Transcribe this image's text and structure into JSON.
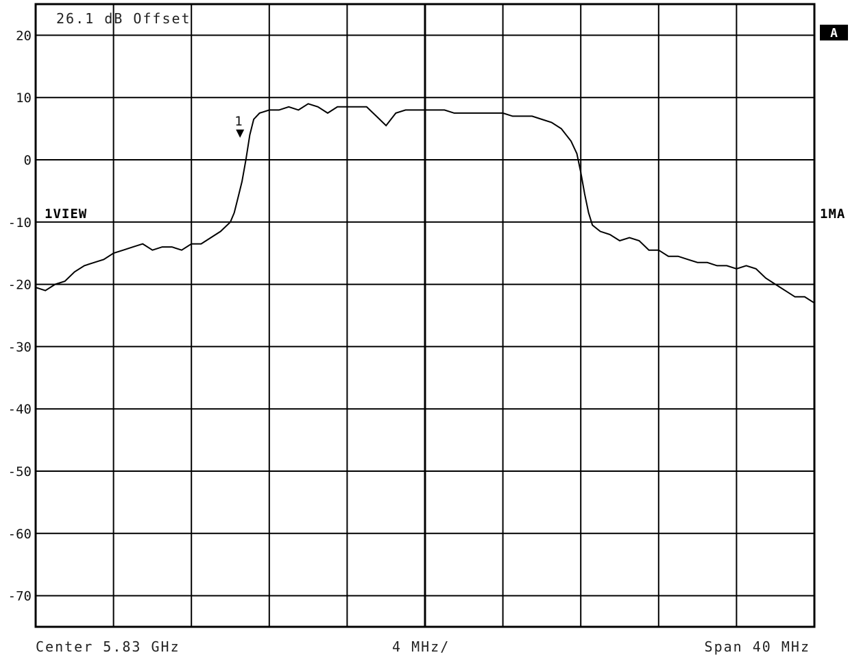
{
  "header": {
    "offset_text": "26.1 dB Offset"
  },
  "side": {
    "badge": "A",
    "left_label": "1VIEW",
    "right_label": "1MA"
  },
  "footer": {
    "center": "Center 5.83 GHz",
    "div": "4 MHz/",
    "span": "Span 40 MHz"
  },
  "marker": {
    "label": "1",
    "x": -9.5,
    "y": 4.2
  },
  "colors": {
    "trace": "#000000",
    "grid": "#000000",
    "background": "#ffffff",
    "badge": "#000000"
  },
  "chart_data": {
    "type": "line",
    "title": "",
    "xlabel": "",
    "ylabel": "",
    "x_unit": "MHz offset from center",
    "xlim": [
      -20,
      20
    ],
    "ylim": [
      -75,
      25
    ],
    "grid": true,
    "x_divisions": 10,
    "ytick_values": [
      20,
      10,
      0,
      -10,
      -20,
      -30,
      -40,
      -50,
      -60,
      -70
    ],
    "ytick_labels": [
      "20",
      "10",
      "0",
      "-10",
      "-20",
      "-30",
      "-40",
      "-50",
      "-60",
      "-70"
    ],
    "series": [
      {
        "x": [
          -20,
          -19.5,
          -19,
          -18.5,
          -18,
          -17.5,
          -17,
          -16.5,
          -16,
          -15.5,
          -15,
          -14.5,
          -14,
          -13.5,
          -13,
          -12.5,
          -12,
          -11.5,
          -11,
          -10.5,
          -10,
          -9.8,
          -9.6,
          -9.4,
          -9.2,
          -9.0,
          -8.8,
          -8.5,
          -8,
          -7.5,
          -7,
          -6.5,
          -6,
          -5.5,
          -5,
          -4.5,
          -4,
          -3.5,
          -3,
          -2.5,
          -2,
          -1.5,
          -1,
          -0.5,
          0,
          0.5,
          1,
          1.5,
          2,
          2.5,
          3,
          3.5,
          4,
          4.5,
          5,
          5.5,
          6,
          6.5,
          7,
          7.5,
          7.8,
          8.0,
          8.2,
          8.4,
          8.6,
          9,
          9.5,
          10,
          10.5,
          11,
          11.5,
          12,
          12.5,
          13,
          13.5,
          14,
          14.5,
          15,
          15.5,
          16,
          16.5,
          17,
          17.5,
          18,
          18.5,
          19,
          19.5,
          20
        ],
        "y": [
          -20.5,
          -21,
          -20,
          -19.5,
          -18,
          -17,
          -16.5,
          -16,
          -15,
          -14.5,
          -14,
          -13.5,
          -14.5,
          -14,
          -14,
          -14.5,
          -13.5,
          -13.5,
          -12.5,
          -11.5,
          -10,
          -8.5,
          -6,
          -3.5,
          0,
          4,
          6.5,
          7.5,
          8,
          8,
          8.5,
          8,
          9,
          8.5,
          7.5,
          8.5,
          8.5,
          8.5,
          8.5,
          7,
          5.5,
          7.5,
          8,
          8,
          8,
          8,
          8,
          7.5,
          7.5,
          7.5,
          7.5,
          7.5,
          7.5,
          7,
          7,
          7,
          6.5,
          6,
          5,
          3,
          1,
          -2,
          -5.5,
          -8.5,
          -10.5,
          -11.5,
          -12,
          -13,
          -12.5,
          -13,
          -14.5,
          -14.5,
          -15.5,
          -15.5,
          -16,
          -16.5,
          -16.5,
          -17,
          -17,
          -17.5,
          -17,
          -17.5,
          -19,
          -20,
          -21,
          -22,
          -22,
          -23
        ]
      }
    ]
  }
}
